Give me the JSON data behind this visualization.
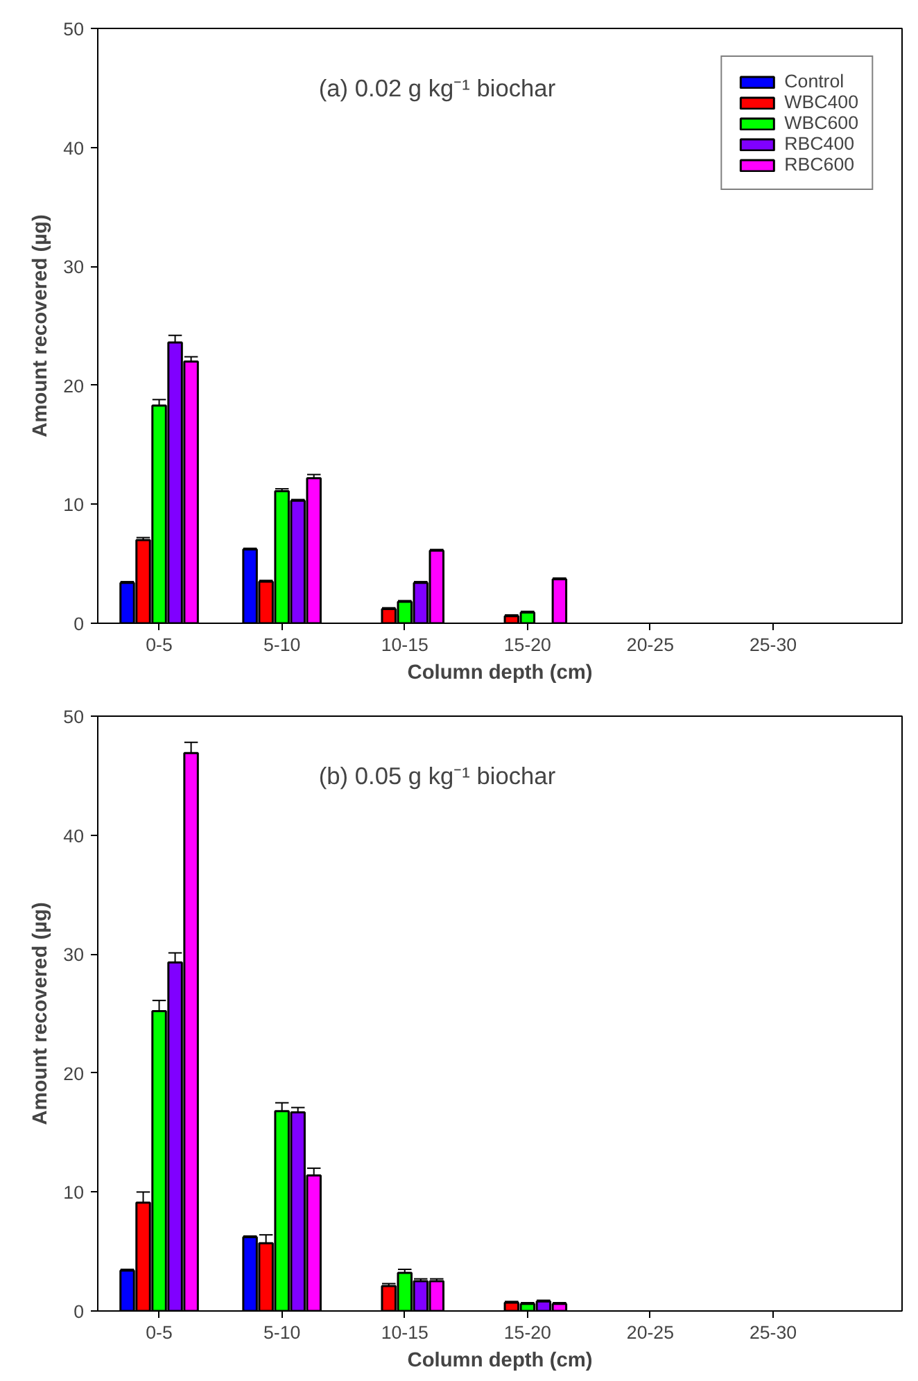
{
  "chart_data": [
    {
      "type": "bar",
      "title": "(a) 0.02 g kg⁻¹ biochar",
      "xlabel": "Column depth (cm)",
      "ylabel": "Amount recovered (µg)",
      "categories": [
        "0-5",
        "5-10",
        "10-15",
        "15-20",
        "20-25",
        "25-30"
      ],
      "ylim": [
        0,
        50
      ],
      "yticks": [
        0,
        10,
        20,
        30,
        40,
        50
      ],
      "grid": false,
      "legend": "top right",
      "series": [
        {
          "name": "Control",
          "color": "#0000ff",
          "values": [
            3.4,
            6.2,
            null,
            null,
            null,
            null
          ],
          "errors": [
            0.1,
            0.1,
            null,
            null,
            null,
            null
          ]
        },
        {
          "name": "WBC400",
          "color": "#ff0000",
          "values": [
            7.0,
            3.5,
            1.2,
            0.6,
            null,
            null
          ],
          "errors": [
            0.2,
            0.1,
            0.1,
            0.1,
            null,
            null
          ]
        },
        {
          "name": "WBC600",
          "color": "#00ff00",
          "values": [
            18.3,
            11.1,
            1.8,
            0.9,
            null,
            null
          ],
          "errors": [
            0.5,
            0.2,
            0.1,
            0.1,
            null,
            null
          ]
        },
        {
          "name": "RBC400",
          "color": "#8000ff",
          "values": [
            23.6,
            10.3,
            3.4,
            null,
            null,
            null
          ],
          "errors": [
            0.6,
            0.1,
            0.1,
            null,
            null,
            null
          ]
        },
        {
          "name": "RBC600",
          "color": "#ff00ff",
          "values": [
            22.0,
            12.2,
            6.1,
            3.7,
            null,
            null
          ],
          "errors": [
            0.4,
            0.3,
            0.1,
            0.1,
            null,
            null
          ]
        }
      ]
    },
    {
      "type": "bar",
      "title": "(b) 0.05 g kg⁻¹ biochar",
      "xlabel": "Column depth (cm)",
      "ylabel": "Amount recovered (µg)",
      "categories": [
        "0-5",
        "5-10",
        "10-15",
        "15-20",
        "20-25",
        "25-30"
      ],
      "ylim": [
        0,
        50
      ],
      "yticks": [
        0,
        10,
        20,
        30,
        40,
        50
      ],
      "grid": false,
      "series": [
        {
          "color": "#0000ff",
          "values": [
            3.4,
            6.2,
            null,
            null,
            null,
            null
          ],
          "errors": [
            0.1,
            0.1,
            null,
            null,
            null,
            null
          ]
        },
        {
          "color": "#ff0000",
          "values": [
            9.1,
            5.7,
            2.1,
            0.7,
            null,
            null
          ],
          "errors": [
            0.9,
            0.7,
            0.2,
            0.1,
            null,
            null
          ]
        },
        {
          "color": "#00ff00",
          "values": [
            25.2,
            16.8,
            3.2,
            0.6,
            null,
            null
          ],
          "errors": [
            0.9,
            0.7,
            0.3,
            0.1,
            null,
            null
          ]
        },
        {
          "color": "#8000ff",
          "values": [
            29.3,
            16.7,
            2.5,
            0.8,
            null,
            null
          ],
          "errors": [
            0.8,
            0.4,
            0.2,
            0.1,
            null,
            null
          ]
        },
        {
          "color": "#ff00ff",
          "values": [
            46.9,
            11.4,
            2.5,
            0.6,
            null,
            null
          ],
          "errors": [
            0.9,
            0.6,
            0.2,
            0.1,
            null,
            null
          ]
        }
      ]
    }
  ]
}
